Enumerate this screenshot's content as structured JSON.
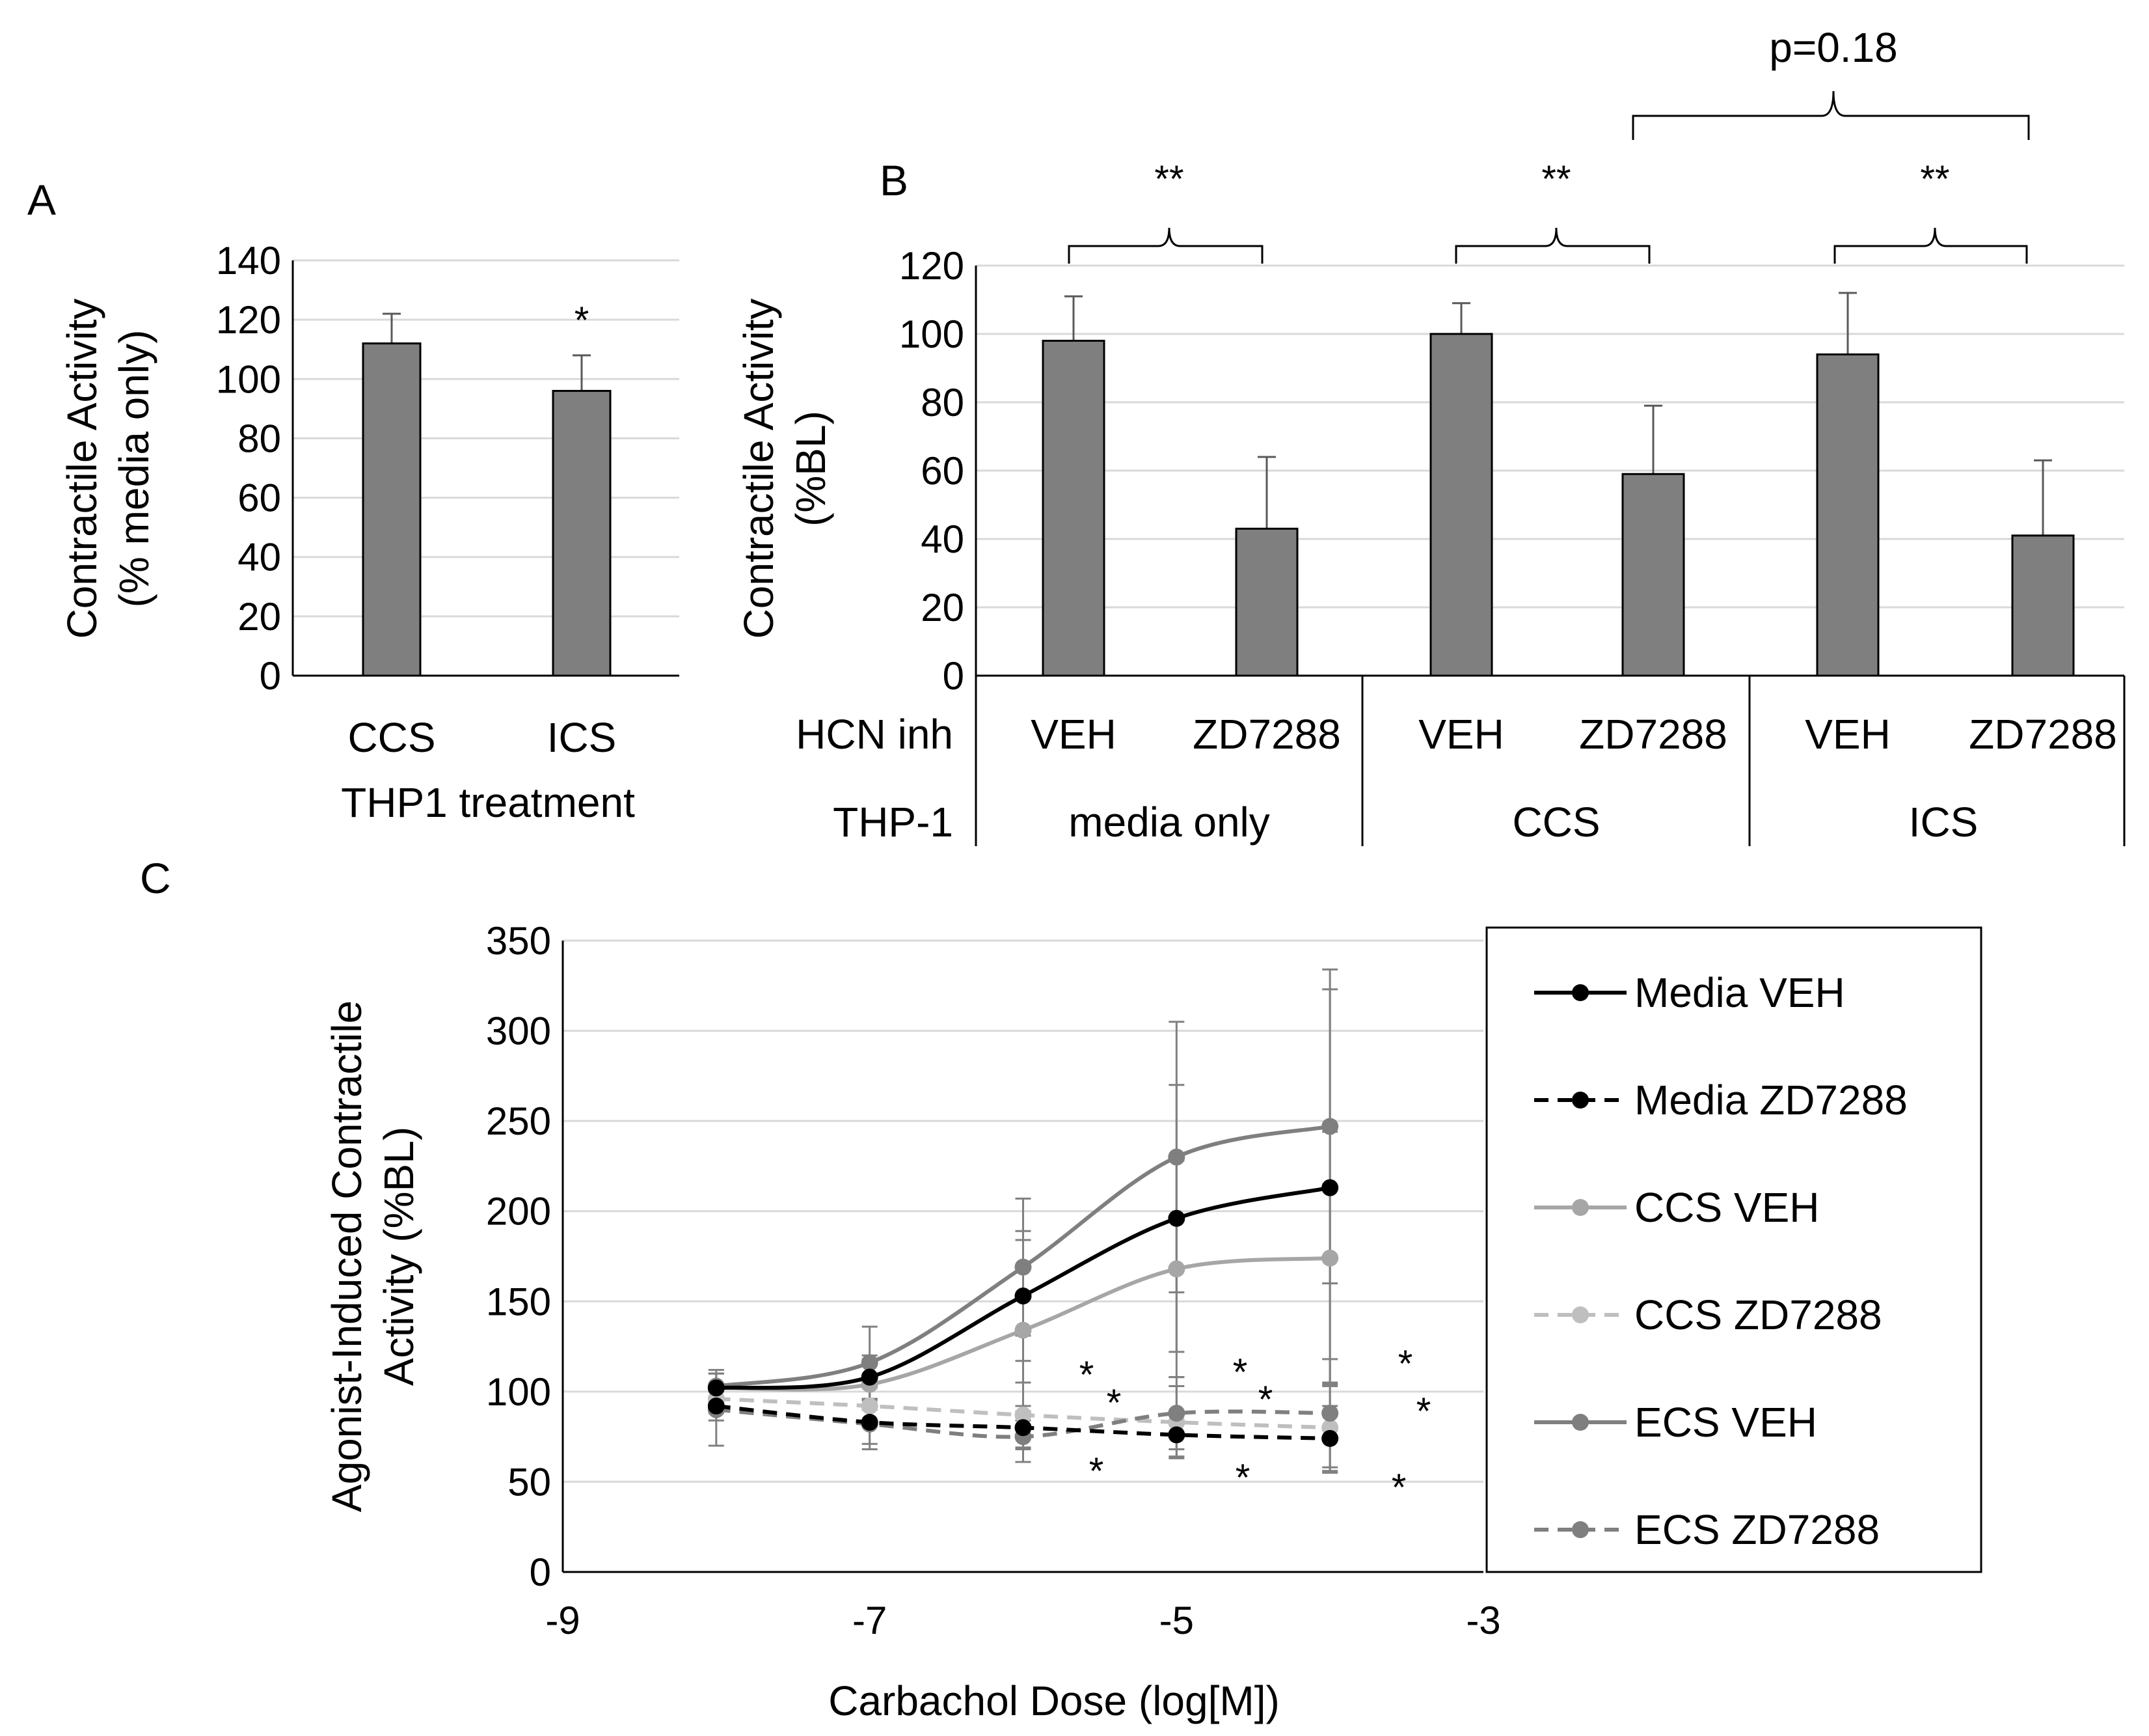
{
  "panels": {
    "a": "A",
    "b": "B",
    "c": "C"
  },
  "colors": {
    "bar": "#7f7f7f",
    "grid": "#d9d9d9",
    "axis": "#000000",
    "error": "#595959"
  },
  "chart_data": [
    {
      "id": "A",
      "type": "bar",
      "ylabel_line1": "Contractile Activity",
      "ylabel_line2": "(% media only)",
      "xlabel": "THP1 treatment",
      "ylim": [
        0,
        140
      ],
      "yticks": [
        0,
        20,
        40,
        60,
        80,
        100,
        120,
        140
      ],
      "categories": [
        "CCS",
        "ICS"
      ],
      "values": [
        112,
        96
      ],
      "errors": [
        10,
        12
      ],
      "annotations": [
        "",
        "*"
      ]
    },
    {
      "id": "B",
      "type": "bar",
      "ylabel_line1": "Contractile Activity",
      "ylabel_line2": "(%BL)",
      "ylim": [
        0,
        120
      ],
      "yticks": [
        0,
        20,
        40,
        60,
        80,
        100,
        120
      ],
      "row_labels": {
        "hcn": "HCN inh",
        "thp": "THP-1"
      },
      "categories": [
        "VEH",
        "ZD7288",
        "VEH",
        "ZD7288",
        "VEH",
        "ZD7288"
      ],
      "groups": [
        "media only",
        "CCS",
        "ICS"
      ],
      "values": [
        98,
        43,
        100,
        59,
        94,
        41
      ],
      "errors": [
        13,
        21,
        9,
        20,
        18,
        22
      ],
      "brackets": [
        "**",
        "**",
        "**"
      ],
      "outer_bracket": "p=0.18"
    },
    {
      "id": "C",
      "type": "line",
      "xlabel": "Carbachol Dose (log[M])",
      "ylabel_line1": "Agonist-Induced Contractile",
      "ylabel_line2": "Activity (%BL)",
      "xlim": [
        -9,
        -3
      ],
      "xticks": [
        -9,
        -7,
        -5,
        -3
      ],
      "ylim": [
        0,
        350
      ],
      "yticks": [
        0,
        50,
        100,
        150,
        200,
        250,
        300,
        350
      ],
      "x": [
        -8,
        -7,
        -6,
        -5,
        -4
      ],
      "series": [
        {
          "name": "Media VEH",
          "values": [
            102,
            108,
            153,
            196,
            213
          ],
          "errors": [
            8,
            12,
            36,
            74,
            110
          ],
          "color": "#000000",
          "dashed": false
        },
        {
          "name": "Media ZD7288",
          "values": [
            92,
            83,
            80,
            76,
            74
          ],
          "errors": [
            8,
            12,
            12,
            12,
            18
          ],
          "color": "#000000",
          "dashed": true
        },
        {
          "name": "CCS VEH",
          "values": [
            102,
            104,
            134,
            168,
            174
          ],
          "errors": [
            8,
            14,
            50,
            60,
            70
          ],
          "color": "#a6a6a6",
          "dashed": false
        },
        {
          "name": "CCS ZD7288",
          "values": [
            96,
            92,
            87,
            83,
            80
          ],
          "errors": [
            8,
            10,
            18,
            20,
            25
          ],
          "color": "#bfbfbf",
          "dashed": true
        },
        {
          "name": "ECS VEH",
          "values": [
            103,
            116,
            169,
            230,
            247
          ],
          "errors": [
            9,
            20,
            38,
            75,
            87
          ],
          "color": "#7f7f7f",
          "dashed": false
        },
        {
          "name": "ECS ZD7288",
          "values": [
            90,
            82,
            75,
            88,
            88
          ],
          "errors": [
            20,
            14,
            14,
            20,
            30
          ],
          "color": "#7f7f7f",
          "dashed": true
        }
      ],
      "stars": [
        "*",
        "*",
        "*",
        "*",
        "*",
        "*",
        "*",
        "*",
        "*"
      ]
    }
  ]
}
